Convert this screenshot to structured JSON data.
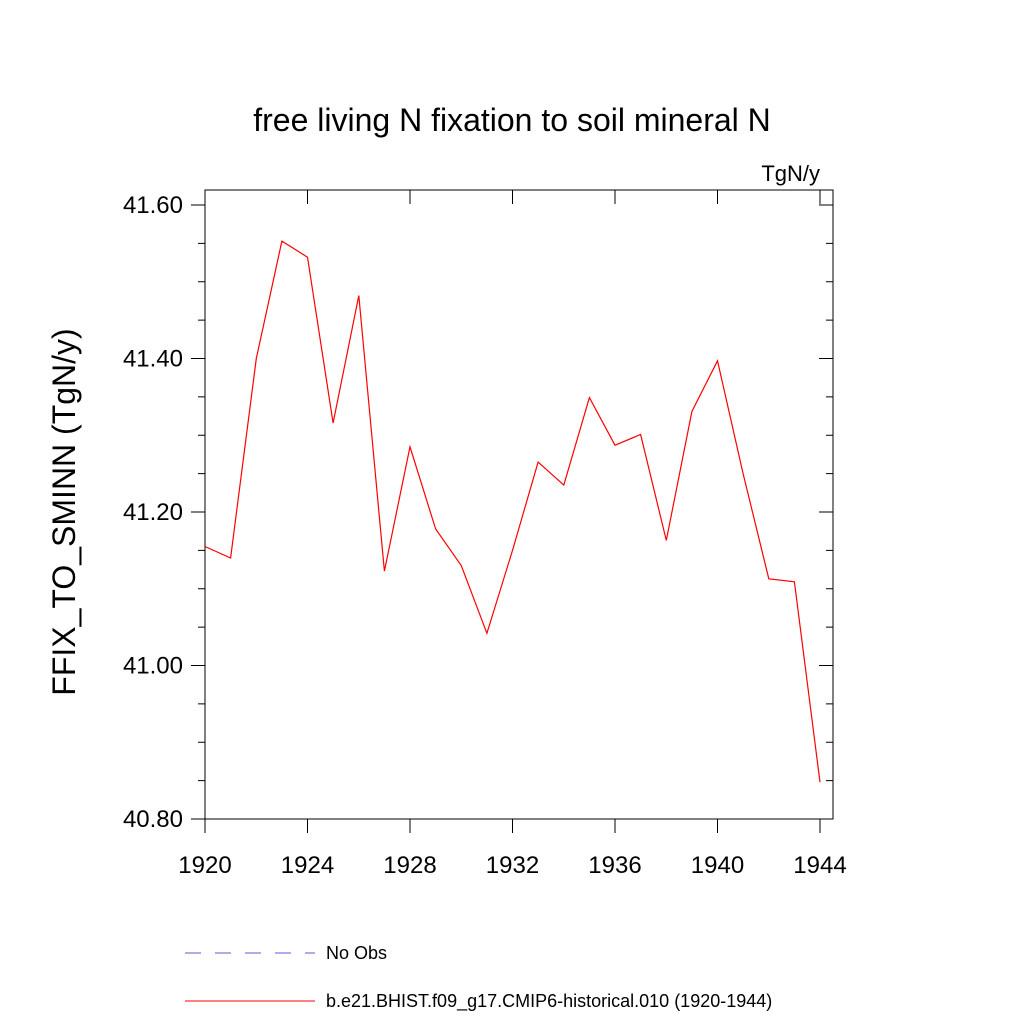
{
  "chart_data": {
    "type": "line",
    "title": "free living N fixation to soil mineral N",
    "units": "TgN/y",
    "ylabel": "FFIX_TO_SMINN  (TgN/y)",
    "xlabel": "",
    "xlim": [
      1920,
      1944
    ],
    "ylim": [
      40.8,
      41.6
    ],
    "x_ticks": [
      1920,
      1924,
      1928,
      1932,
      1936,
      1940,
      1944
    ],
    "y_ticks": [
      40.8,
      41.0,
      41.2,
      41.4,
      41.6
    ],
    "y_tick_labels": [
      "40.80",
      "41.00",
      "41.20",
      "41.40",
      "41.60"
    ],
    "series": [
      {
        "name": "b.e21.BHIST.f09_g17.CMIP6-historical.010 (1920-1944)",
        "color": "#ff0000",
        "x": [
          1920,
          1921,
          1922,
          1923,
          1924,
          1925,
          1926,
          1927,
          1928,
          1929,
          1930,
          1931,
          1932,
          1933,
          1934,
          1935,
          1936,
          1937,
          1938,
          1939,
          1940,
          1941,
          1942,
          1943,
          1944
        ],
        "values": [
          41.155,
          41.14,
          41.4,
          41.553,
          41.532,
          41.316,
          41.482,
          41.123,
          41.285,
          41.178,
          41.13,
          41.042,
          41.15,
          41.265,
          41.235,
          41.349,
          41.287,
          41.301,
          41.163,
          41.331,
          41.397,
          41.25,
          41.113,
          41.109,
          40.848
        ]
      }
    ],
    "legend": [
      {
        "label": "No Obs",
        "style": "dashed",
        "color": "#5b5bd6"
      },
      {
        "label": "b.e21.BHIST.f09_g17.CMIP6-historical.010 (1920-1944)",
        "style": "solid",
        "color": "#ff0000"
      }
    ]
  }
}
